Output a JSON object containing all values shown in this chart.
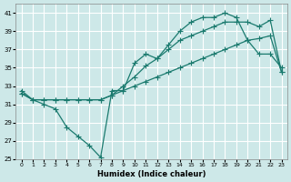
{
  "xlabel": "Humidex (Indice chaleur)",
  "bg_color": "#cde8e8",
  "grid_color": "#b0d0d0",
  "line_color": "#1a7a6e",
  "xlim": [
    -0.5,
    23.5
  ],
  "ylim": [
    25,
    42
  ],
  "yticks": [
    25,
    27,
    29,
    31,
    33,
    35,
    37,
    39,
    41
  ],
  "xticks": [
    0,
    1,
    2,
    3,
    4,
    5,
    6,
    7,
    8,
    9,
    10,
    11,
    12,
    13,
    14,
    15,
    16,
    17,
    18,
    19,
    20,
    21,
    22,
    23
  ],
  "line1_x": [
    0,
    1,
    2,
    3,
    4,
    5,
    6,
    7,
    8,
    9,
    10,
    11,
    12,
    13,
    14,
    15,
    16,
    17,
    18,
    19,
    20,
    21,
    22,
    23
  ],
  "line1_y": [
    32.5,
    31.5,
    31.0,
    30.5,
    28.5,
    27.5,
    26.5,
    25.2,
    32.5,
    32.5,
    35.5,
    36.5,
    36.0,
    37.5,
    39.0,
    40.0,
    40.5,
    40.5,
    41.0,
    40.5,
    38.0,
    36.5,
    36.5,
    35.0
  ],
  "line2_x": [
    0,
    1,
    2,
    3,
    4,
    5,
    6,
    7,
    8,
    9,
    10,
    11,
    12,
    13,
    14,
    15,
    16,
    17,
    18,
    19,
    20,
    21,
    22,
    23
  ],
  "line2_y": [
    32.2,
    31.5,
    31.5,
    31.5,
    31.5,
    31.5,
    31.5,
    31.5,
    32.0,
    33.0,
    34.0,
    35.2,
    36.0,
    37.0,
    38.0,
    38.5,
    39.0,
    39.5,
    40.0,
    40.0,
    40.0,
    39.5,
    40.2,
    34.5
  ],
  "line3_x": [
    0,
    1,
    2,
    3,
    4,
    5,
    6,
    7,
    8,
    9,
    10,
    11,
    12,
    13,
    14,
    15,
    16,
    17,
    18,
    19,
    20,
    21,
    22,
    23
  ],
  "line3_y": [
    32.2,
    31.5,
    31.5,
    31.5,
    31.5,
    31.5,
    31.5,
    31.5,
    32.0,
    32.5,
    33.0,
    33.5,
    34.0,
    34.5,
    35.0,
    35.5,
    36.0,
    36.5,
    37.0,
    37.5,
    38.0,
    38.2,
    38.5,
    34.5
  ]
}
